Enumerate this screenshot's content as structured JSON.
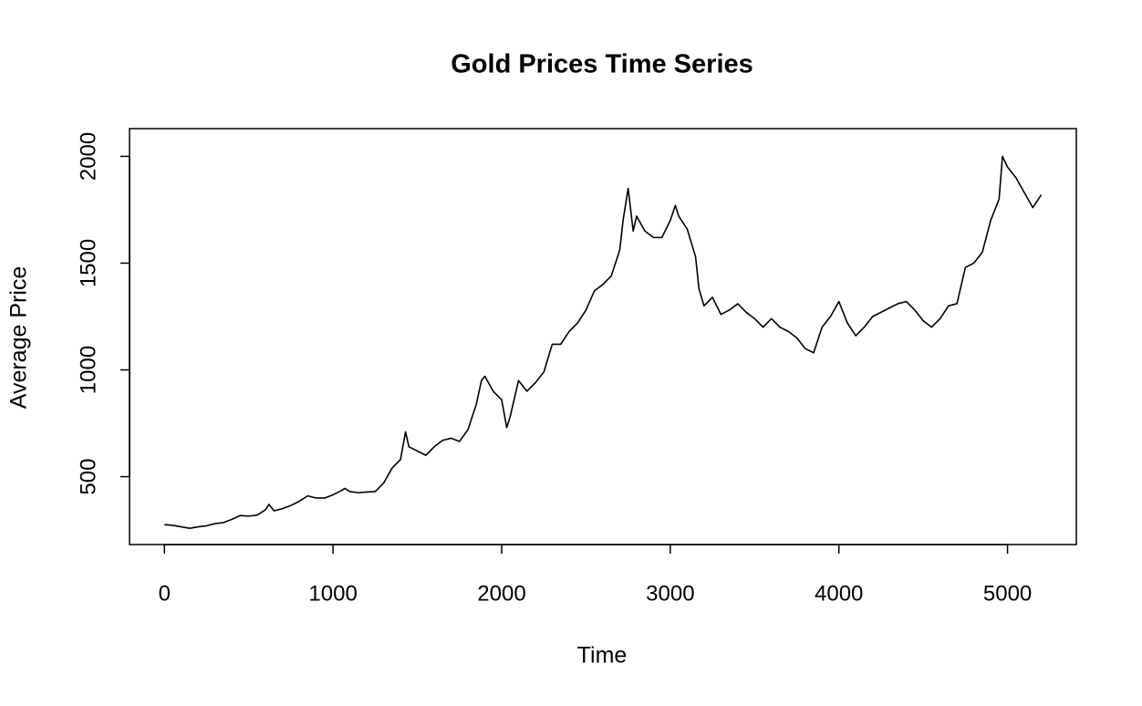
{
  "chart_data": {
    "type": "line",
    "title": "Gold Prices Time Series",
    "x_label": "Time",
    "y_label": "Average Price",
    "xlim": [
      -207,
      5408
    ],
    "ylim": [
      182,
      2130
    ],
    "xticks": [
      0,
      1000,
      2000,
      3000,
      4000,
      5000
    ],
    "yticks": [
      500,
      1000,
      1500,
      2000
    ],
    "series": [
      {
        "color": "#000000",
        "x": [
          0,
          50,
          100,
          150,
          200,
          250,
          300,
          350,
          400,
          450,
          500,
          550,
          600,
          620,
          650,
          700,
          750,
          800,
          850,
          900,
          950,
          1000,
          1050,
          1070,
          1100,
          1150,
          1200,
          1250,
          1300,
          1350,
          1400,
          1430,
          1450,
          1500,
          1550,
          1600,
          1650,
          1700,
          1750,
          1800,
          1850,
          1880,
          1900,
          1950,
          2000,
          2030,
          2050,
          2100,
          2150,
          2200,
          2250,
          2300,
          2350,
          2400,
          2450,
          2500,
          2550,
          2600,
          2650,
          2700,
          2720,
          2750,
          2780,
          2800,
          2850,
          2900,
          2950,
          3000,
          3030,
          3050,
          3100,
          3150,
          3170,
          3200,
          3250,
          3300,
          3350,
          3400,
          3450,
          3500,
          3550,
          3600,
          3650,
          3700,
          3750,
          3800,
          3850,
          3900,
          3950,
          4000,
          4050,
          4100,
          4150,
          4200,
          4250,
          4300,
          4350,
          4400,
          4450,
          4500,
          4550,
          4600,
          4650,
          4700,
          4750,
          4800,
          4850,
          4900,
          4950,
          4970,
          5000,
          5050,
          5100,
          5150,
          5200
        ],
        "values": [
          275,
          272,
          265,
          258,
          265,
          270,
          280,
          285,
          300,
          318,
          315,
          320,
          345,
          370,
          340,
          350,
          365,
          385,
          410,
          400,
          400,
          415,
          435,
          445,
          430,
          425,
          428,
          430,
          470,
          540,
          580,
          710,
          640,
          620,
          600,
          640,
          670,
          680,
          665,
          720,
          840,
          950,
          970,
          900,
          860,
          730,
          780,
          950,
          900,
          940,
          990,
          1120,
          1120,
          1180,
          1220,
          1280,
          1370,
          1400,
          1440,
          1560,
          1700,
          1850,
          1650,
          1720,
          1650,
          1620,
          1620,
          1700,
          1770,
          1720,
          1660,
          1530,
          1380,
          1300,
          1340,
          1260,
          1280,
          1310,
          1270,
          1240,
          1200,
          1240,
          1200,
          1180,
          1150,
          1100,
          1080,
          1200,
          1250,
          1320,
          1220,
          1160,
          1200,
          1250,
          1270,
          1290,
          1310,
          1320,
          1280,
          1230,
          1200,
          1240,
          1300,
          1310,
          1480,
          1500,
          1550,
          1700,
          1800,
          2000,
          1950,
          1900,
          1830,
          1760,
          1820
        ]
      }
    ]
  }
}
